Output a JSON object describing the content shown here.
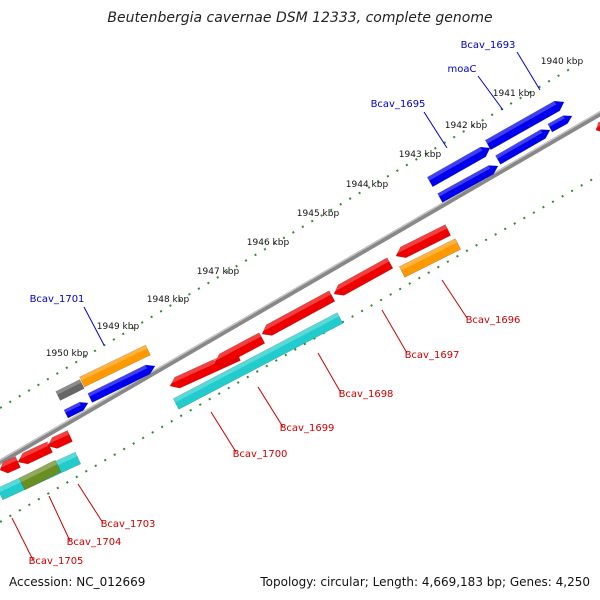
{
  "title": "Beutenbergia cavernae DSM 12333, complete genome",
  "footer": {
    "accession": "Accession: NC_012669",
    "summary": "Topology: circular; Length: 4,669,183 bp; Genes: 4,250"
  },
  "scale_labels": [
    "1940 kbp",
    "1941 kbp",
    "1942 kbp",
    "1943 kbp",
    "1944 kbp",
    "1945 kbp",
    "1946 kbp",
    "1947 kbp",
    "1948 kbp",
    "1949 kbp",
    "1950 kbp"
  ],
  "gene_labels_top": [
    {
      "text": "Bcav_1693",
      "color": "#0000cc"
    },
    {
      "text": "moaC",
      "color": "#0000cc"
    },
    {
      "text": "Bcav_1695",
      "color": "#0000cc"
    },
    {
      "text": "Bcav_1701",
      "color": "#0000cc"
    }
  ],
  "gene_labels_bottom": [
    {
      "text": "Bcav_1696",
      "color": "#cc0000"
    },
    {
      "text": "Bcav_1697",
      "color": "#cc0000"
    },
    {
      "text": "Bcav_1698",
      "color": "#cc0000"
    },
    {
      "text": "Bcav_1699",
      "color": "#cc0000"
    },
    {
      "text": "Bcav_1700",
      "color": "#cc0000"
    },
    {
      "text": "Bcav_1703",
      "color": "#cc0000"
    },
    {
      "text": "Bcav_1704",
      "color": "#cc0000"
    },
    {
      "text": "Bcav_1705",
      "color": "#cc0000"
    }
  ],
  "colors": {
    "backbone": "#888888",
    "tick_green": "#2e8b2e",
    "forward": "#0000ee",
    "reverse": "#ee0000",
    "cyan": "#22cccc",
    "orange": "#ff9900",
    "gray": "#666666",
    "olive": "#6b8e23"
  }
}
